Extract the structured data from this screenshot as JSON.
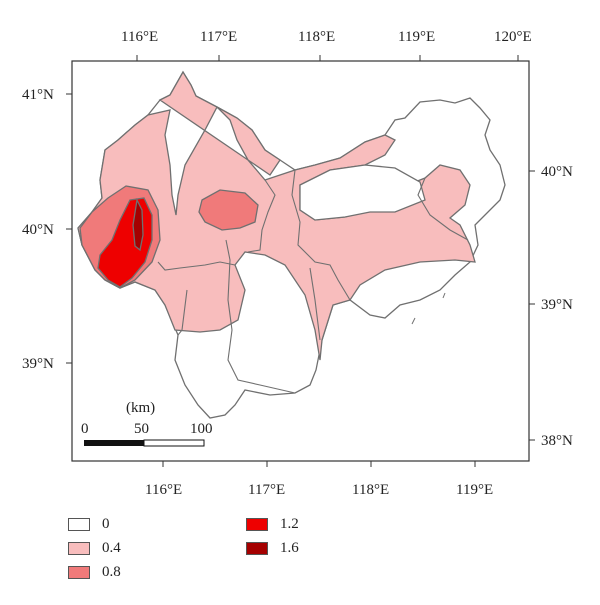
{
  "map": {
    "top_lon_ticks": [
      "116°E",
      "117°E",
      "118°E",
      "119°E",
      "120°E"
    ],
    "bottom_lon_ticks": [
      "116°E",
      "117°E",
      "118°E",
      "119°E"
    ],
    "left_lat_ticks": [
      "41°N",
      "40°N",
      "39°N"
    ],
    "right_lat_ticks": [
      "40°N",
      "39°N",
      "38°N"
    ],
    "scale_bar": {
      "unit": "(km)",
      "labels": [
        "0",
        "50",
        "100"
      ]
    }
  },
  "legend": {
    "items": [
      {
        "label": "0",
        "color": "#ffffff"
      },
      {
        "label": "0.4",
        "color": "#f8bdbd"
      },
      {
        "label": "0.8",
        "color": "#f07a7a"
      },
      {
        "label": "1.2",
        "color": "#ee0000"
      },
      {
        "label": "1.6",
        "color": "#a50000"
      }
    ]
  },
  "colors": {
    "frame": "#333333",
    "boundary": "#707070"
  }
}
